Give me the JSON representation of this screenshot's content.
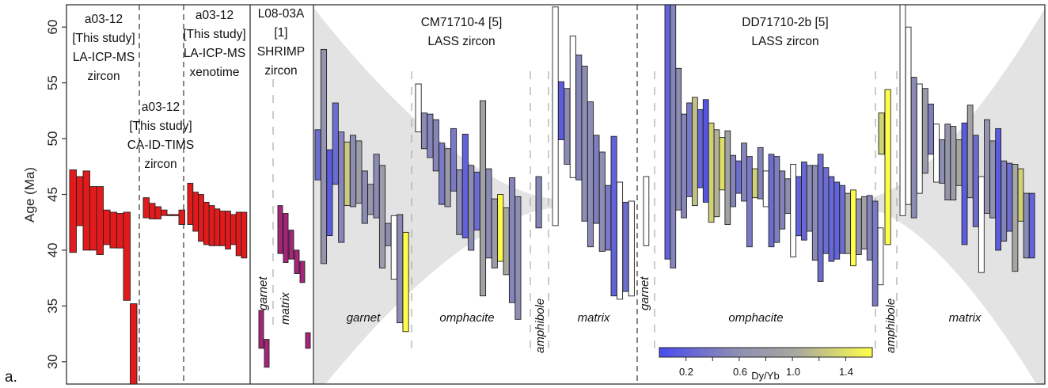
{
  "figure_label": "a.",
  "chart_data": {
    "type": "bar",
    "bar_style": "floating age range bars (min-max), colored by Dy/Yb or by study",
    "ylabel": "Age (Ma)",
    "ylim": [
      28,
      62
    ],
    "yticks": [
      30,
      35,
      40,
      45,
      50,
      55,
      60
    ],
    "grid": false,
    "colors": {
      "red": "#e31a1c",
      "magenta": "#a8237a",
      "shade": "#e3e3e3",
      "cmap": [
        "#4a4af0",
        "#8c8cb4",
        "#a9a9a0",
        "#ffff4a"
      ]
    },
    "colorbar": {
      "label": "Dy/Yb",
      "range": [
        0.0,
        1.6
      ],
      "tick_labels": [
        "0.2",
        "0.6",
        "1.0",
        "1.4"
      ]
    },
    "headers": {
      "a_lams_zr": [
        "a03-12",
        "[This study]",
        "LA-ICP-MS",
        "zircon"
      ],
      "a_tims": [
        "a03-12",
        "[This study]",
        "CA-ID-TIMS",
        "zircon"
      ],
      "a_lams_xen": [
        "a03-12",
        "[This study]",
        "LA-ICP-MS",
        "xenotime"
      ],
      "l08": [
        "L08-03A",
        "[1]",
        "SHRIMP",
        "zircon"
      ],
      "cm": [
        "CM71710-4 [5]",
        "LASS zircon"
      ],
      "dd": [
        "DD71710-2b [5]",
        "LASS zircon"
      ]
    },
    "sublabels": {
      "l08_garnet": "garnet",
      "l08_matrix": "matrix",
      "cm_garnet": "garnet",
      "cm_omphacite": "omphacite",
      "cm_amphibole": "amphibole",
      "cm_matrix": "matrix",
      "dd_garnet": "garnet",
      "dd_omphacite": "omphacite",
      "dd_amphibole": "amphibole",
      "dd_matrix": "matrix"
    },
    "groups": [
      {
        "id": "a03_lams_zircon",
        "color": "red",
        "bars": [
          [
            39.8,
            47.2
          ],
          [
            42.2,
            46.6
          ],
          [
            40.0,
            47.1
          ],
          [
            40.0,
            45.7
          ],
          [
            39.6,
            45.7
          ],
          [
            40.5,
            43.6
          ],
          [
            40.2,
            43.4
          ],
          [
            40.2,
            43.3
          ],
          [
            35.5,
            43.4
          ],
          [
            27.2,
            35.2
          ]
        ]
      },
      {
        "id": "a03_tims_zircon",
        "color": "red",
        "bars": [
          [
            42.9,
            44.7
          ],
          [
            42.8,
            44.2
          ],
          [
            42.8,
            43.9
          ],
          [
            43.1,
            43.6
          ],
          [
            43.1,
            43.2
          ],
          [
            43.1,
            43.2
          ],
          [
            42.3,
            43.6
          ]
        ]
      },
      {
        "id": "a03_lams_xenotime",
        "color": "red",
        "bars": [
          [
            42.3,
            46.0
          ],
          [
            41.7,
            45.2
          ],
          [
            40.8,
            45.0
          ],
          [
            40.5,
            44.3
          ],
          [
            40.4,
            44.0
          ],
          [
            40.4,
            43.7
          ],
          [
            40.4,
            43.5
          ],
          [
            40.1,
            43.5
          ],
          [
            40.5,
            43.2
          ],
          [
            39.5,
            43.4
          ],
          [
            39.3,
            43.4
          ]
        ]
      },
      {
        "id": "l08_garnet",
        "color": "magenta",
        "bars": [
          [
            31.2,
            34.6
          ],
          [
            29.5,
            32.0
          ]
        ]
      },
      {
        "id": "l08_matrix",
        "color": "magenta",
        "bars": [
          [
            39.7,
            44.0
          ],
          [
            38.9,
            43.3
          ],
          [
            39.2,
            41.8
          ],
          [
            37.9,
            40.0
          ],
          [
            37.1,
            39.0
          ],
          [
            31.2,
            32.6
          ]
        ]
      },
      {
        "id": "cm_garnet",
        "dyyb": [
          0.3,
          0.7,
          0.15,
          0.3,
          0.5,
          1.25,
          0.6,
          0.85,
          0.55,
          0.75,
          0.55,
          0.8,
          0.6,
          0.0,
          0.55,
          1.6
        ],
        "bars": [
          [
            46.3,
            50.8
          ],
          [
            38.8,
            58.0
          ],
          [
            41.3,
            49.0
          ],
          [
            45.9,
            53.2
          ],
          [
            40.7,
            50.6
          ],
          [
            44.0,
            49.7
          ],
          [
            43.9,
            50.3
          ],
          [
            44.2,
            49.8
          ],
          [
            42.4,
            47.1
          ],
          [
            43.2,
            45.9
          ],
          [
            42.9,
            48.6
          ],
          [
            38.4,
            47.6
          ],
          [
            40.4,
            42.4
          ],
          [
            37.4,
            43.1
          ],
          [
            33.5,
            43.2
          ],
          [
            32.7,
            41.6
          ]
        ]
      },
      {
        "id": "cm_omphacite",
        "dyyb": [
          0.0,
          0.55,
          0.5,
          0.5,
          0.4,
          0.8,
          0.4,
          0.55,
          0.2,
          0.6,
          0.3,
          0.9,
          0.55,
          0.8,
          1.6,
          1.0,
          0.5,
          0.6
        ],
        "bars": [
          [
            50.6,
            54.9
          ],
          [
            49.1,
            52.3
          ],
          [
            48.3,
            52.2
          ],
          [
            47.1,
            51.7
          ],
          [
            44.1,
            49.6
          ],
          [
            43.9,
            49.1
          ],
          [
            45.3,
            50.9
          ],
          [
            41.4,
            47.2
          ],
          [
            41.1,
            50.4
          ],
          [
            40.0,
            47.6
          ],
          [
            41.8,
            47.0
          ],
          [
            35.9,
            53.4
          ],
          [
            39.3,
            47.3
          ],
          [
            38.4,
            44.6
          ],
          [
            39.0,
            45.0
          ],
          [
            37.8,
            43.8
          ],
          [
            35.3,
            46.5
          ],
          [
            33.8,
            44.8
          ]
        ]
      },
      {
        "id": "cm_amphibole",
        "dyyb": [
          0.5
        ],
        "bars": [
          [
            42.0,
            46.6
          ]
        ]
      },
      {
        "id": "cm_matrix",
        "dyyb": [
          0.0,
          0.15,
          0.55,
          0.0,
          0.5,
          0.6,
          0.55,
          0.45,
          0.6,
          0.4,
          0.2,
          0.0,
          0.3,
          0.0
        ],
        "bars": [
          [
            42.2,
            61.8
          ],
          [
            49.9,
            55.1
          ],
          [
            47.7,
            54.5
          ],
          [
            46.5,
            59.2
          ],
          [
            46.3,
            57.5
          ],
          [
            42.6,
            56.5
          ],
          [
            40.3,
            53.3
          ],
          [
            42.4,
            50.3
          ],
          [
            39.9,
            48.8
          ],
          [
            40.0,
            45.8
          ],
          [
            35.9,
            50.2
          ],
          [
            35.6,
            46.1
          ],
          [
            36.3,
            44.3
          ],
          [
            35.9,
            44.4
          ]
        ]
      },
      {
        "id": "dd_garnet",
        "dyyb": [
          0.0
        ],
        "bars": [
          [
            40.4,
            46.6
          ]
        ]
      },
      {
        "id": "dd_omphacite",
        "dyyb": [
          0.2,
          0.5,
          0.6,
          0.5,
          0.4,
          1.2,
          0.2,
          0.1,
          1.3,
          1.1,
          1.4,
          0.9,
          0.5,
          0.3,
          0.5,
          0.4,
          1.3,
          0.5,
          0.0,
          0.3,
          0.45,
          0.5,
          0.6,
          0.0,
          0.2,
          0.25,
          0.55,
          0.55,
          0.3,
          0.3,
          0.25,
          0.2,
          0.3,
          1.0,
          1.6,
          0.65,
          0.9,
          0.5,
          0.4,
          0.0
        ],
        "bars": [
          [
            39.2,
            62.0
          ],
          [
            38.4,
            62.0
          ],
          [
            43.6,
            56.3
          ],
          [
            42.9,
            52.2
          ],
          [
            44.8,
            53.2
          ],
          [
            44.0,
            53.7
          ],
          [
            45.6,
            52.6
          ],
          [
            44.3,
            53.5
          ],
          [
            42.5,
            51.4
          ],
          [
            43.0,
            50.8
          ],
          [
            45.4,
            50.1
          ],
          [
            42.3,
            50.7
          ],
          [
            43.9,
            48.5
          ],
          [
            45.1,
            48.0
          ],
          [
            44.4,
            49.6
          ],
          [
            40.3,
            48.4
          ],
          [
            44.7,
            47.3
          ],
          [
            44.6,
            49.2
          ],
          [
            43.9,
            47.1
          ],
          [
            40.3,
            48.6
          ],
          [
            40.7,
            48.4
          ],
          [
            41.9,
            47.1
          ],
          [
            43.3,
            46.4
          ],
          [
            39.4,
            47.7
          ],
          [
            41.3,
            46.6
          ],
          [
            40.9,
            47.9
          ],
          [
            41.7,
            47.6
          ],
          [
            39.1,
            47.6
          ],
          [
            37.2,
            48.6
          ],
          [
            39.7,
            47.4
          ],
          [
            39.0,
            46.6
          ],
          [
            39.2,
            46.1
          ],
          [
            39.7,
            45.8
          ],
          [
            39.7,
            45.1
          ],
          [
            38.6,
            45.4
          ],
          [
            39.6,
            44.6
          ],
          [
            40.1,
            44.8
          ],
          [
            39.1,
            44.9
          ],
          [
            35.0,
            44.4
          ],
          [
            36.9,
            42.0
          ]
        ]
      },
      {
        "id": "dd_amphibole",
        "dyyb": [
          1.3,
          1.6
        ],
        "bars": [
          [
            48.6,
            52.3
          ],
          [
            40.5,
            54.4
          ]
        ]
      },
      {
        "id": "dd_matrix",
        "dyyb": [
          0.0,
          0.0,
          0.55,
          0.0,
          0.8,
          0.45,
          0.0,
          0.6,
          0.7,
          0.85,
          1.0,
          0.15,
          0.9,
          0.3,
          0.0,
          0.7,
          0.65,
          0.15,
          0.5,
          0.3,
          1.0,
          1.3,
          0.55,
          0.2
        ],
        "bars": [
          [
            43.1,
            62.0
          ],
          [
            44.1,
            60.0
          ],
          [
            42.9,
            55.5
          ],
          [
            45.1,
            54.9
          ],
          [
            46.9,
            54.5
          ],
          [
            48.6,
            53.1
          ],
          [
            46.1,
            51.3
          ],
          [
            46.0,
            49.9
          ],
          [
            44.5,
            51.3
          ],
          [
            44.5,
            51.1
          ],
          [
            45.8,
            49.9
          ],
          [
            40.5,
            51.4
          ],
          [
            44.7,
            53.0
          ],
          [
            42.1,
            50.3
          ],
          [
            38.0,
            46.6
          ],
          [
            43.3,
            51.7
          ],
          [
            42.9,
            49.8
          ],
          [
            40.0,
            50.9
          ],
          [
            40.8,
            48.0
          ],
          [
            41.7,
            47.8
          ],
          [
            38.1,
            47.7
          ],
          [
            42.6,
            47.3
          ],
          [
            39.3,
            45.1
          ],
          [
            39.3,
            45.1
          ]
        ]
      }
    ]
  }
}
